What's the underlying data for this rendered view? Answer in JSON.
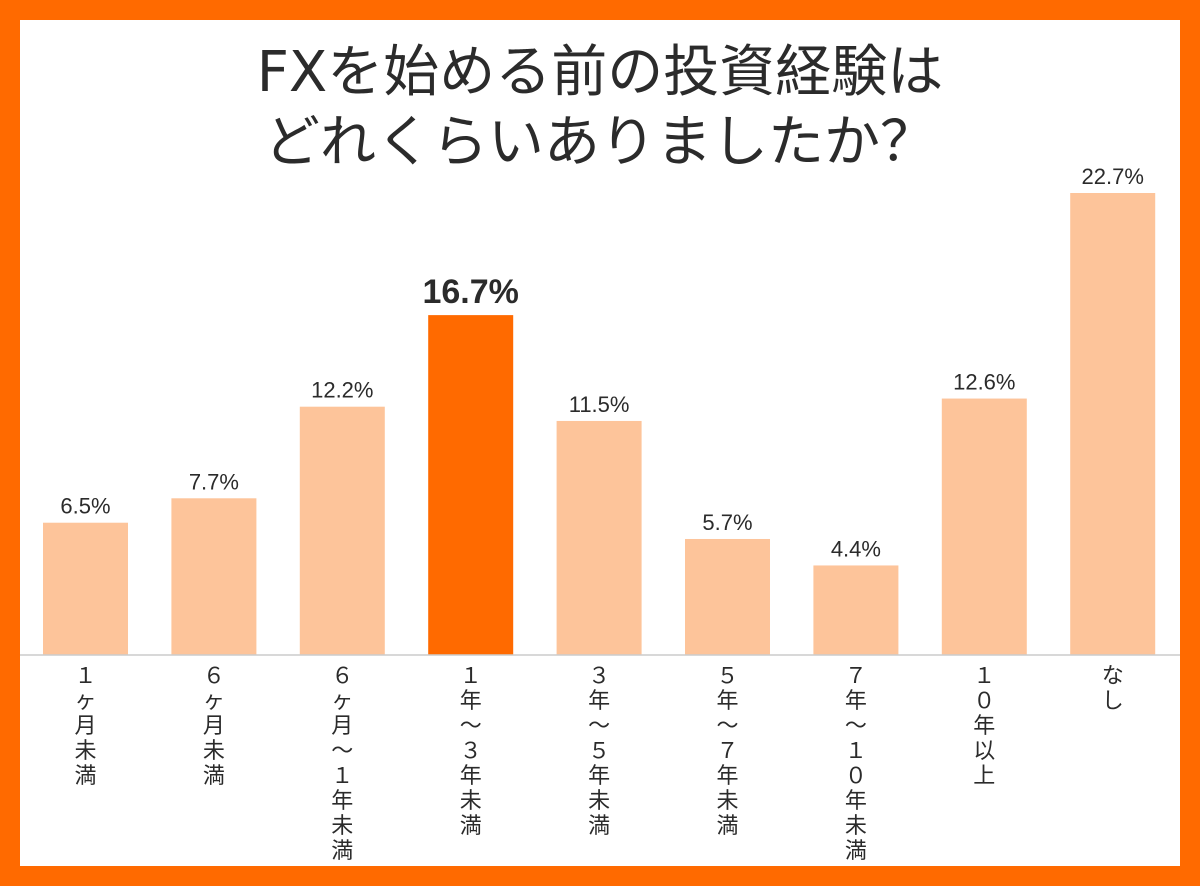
{
  "chart_data": {
    "type": "bar",
    "title_lines": [
      "FXを始める前の投資経験は",
      "どれくらいありましたか？"
    ],
    "categories": [
      "１ヶ月未満",
      "６ヶ月未満",
      "６ヶ月〜１年未満",
      "１年〜３年未満",
      "３年〜５年未満",
      "５年〜７年未満",
      "７年〜１０年未満",
      "１０年以上",
      "なし"
    ],
    "values": [
      6.5,
      7.7,
      12.2,
      16.7,
      11.5,
      5.7,
      4.4,
      12.6,
      22.7
    ],
    "value_labels": [
      "6.5%",
      "7.7%",
      "12.2%",
      "16.7%",
      "11.5%",
      "5.7%",
      "4.4%",
      "12.6%",
      "22.7%"
    ],
    "highlight_index": 3,
    "ylim": [
      0,
      22.7
    ],
    "grid": false,
    "legend": "none",
    "colors": {
      "bar": "#fdc49a",
      "highlight": "#ff6a00",
      "frame": "#ff6a00",
      "background": "#ffffff",
      "text": "#2b2b2b",
      "axis": "#cccccc"
    }
  }
}
